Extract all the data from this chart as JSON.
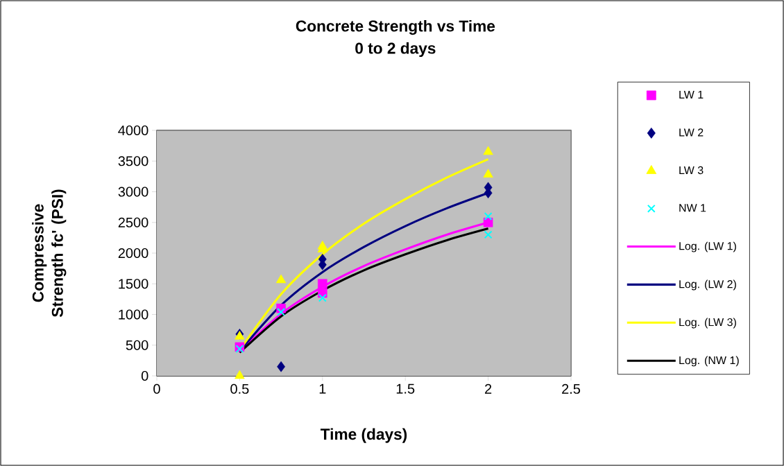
{
  "chart_data": {
    "type": "scatter",
    "title": "Concrete Strength vs Time",
    "subtitle": "0 to 2 days",
    "xlabel": "Time (days)",
    "ylabel": "Compressive Strength fc' (PSI)",
    "xlim": [
      0,
      2.5
    ],
    "xticks": [
      0,
      0.5,
      1,
      1.5,
      2,
      2.5
    ],
    "ylim": [
      0,
      4000
    ],
    "yticks": [
      0,
      500,
      1000,
      1500,
      2000,
      2500,
      3000,
      3500,
      4000
    ],
    "grid": "y",
    "legend": "right",
    "series": [
      {
        "name": "LW 1",
        "type": "scatter",
        "marker": "square",
        "color": "#ff00ff",
        "x": [
          0.5,
          0.75,
          1,
          1,
          2
        ],
        "values": [
          470,
          1100,
          1500,
          1350,
          2500
        ]
      },
      {
        "name": "LW 2",
        "type": "scatter",
        "marker": "diamond",
        "color": "#000080",
        "x": [
          0.5,
          0.75,
          1,
          1,
          2,
          2
        ],
        "values": [
          680,
          150,
          1900,
          1810,
          3070,
          2980
        ]
      },
      {
        "name": "LW 3",
        "type": "scatter",
        "marker": "triangle",
        "color": "#ffff00",
        "x": [
          0.5,
          0.5,
          0.75,
          1,
          1,
          2,
          2
        ],
        "values": [
          640,
          0,
          1560,
          2110,
          2060,
          3650,
          3280
        ]
      },
      {
        "name": "NW 1",
        "type": "scatter",
        "marker": "cross",
        "color": "#00ffff",
        "x": [
          0.5,
          0.75,
          1,
          2,
          2
        ],
        "values": [
          440,
          1040,
          1270,
          2600,
          2300
        ]
      },
      {
        "name": "Log. (LW 1)",
        "type": "line",
        "marker": "none",
        "color": "#ff00ff",
        "x": [
          0.5,
          0.75,
          1,
          1.25,
          1.5,
          1.75,
          2
        ],
        "values": [
          400,
          1010,
          1450,
          1790,
          2060,
          2300,
          2500
        ]
      },
      {
        "name": "Log. (LW 2)",
        "type": "line",
        "marker": "none",
        "color": "#000080",
        "x": [
          0.5,
          0.75,
          1,
          1.25,
          1.5,
          1.75,
          2
        ],
        "values": [
          400,
          1150,
          1690,
          2100,
          2440,
          2730,
          2980
        ]
      },
      {
        "name": "Log. (LW 3)",
        "type": "line",
        "marker": "none",
        "color": "#ffff00",
        "x": [
          0.5,
          0.75,
          1,
          1.25,
          1.5,
          1.75,
          2
        ],
        "values": [
          420,
          1330,
          1980,
          2480,
          2880,
          3230,
          3530
        ]
      },
      {
        "name": "Log. (NW 1)",
        "type": "line",
        "marker": "none",
        "color": "#000000",
        "x": [
          0.5,
          0.75,
          1,
          1.25,
          1.5,
          1.75,
          2
        ],
        "values": [
          380,
          970,
          1390,
          1720,
          1980,
          2210,
          2400
        ]
      }
    ]
  }
}
